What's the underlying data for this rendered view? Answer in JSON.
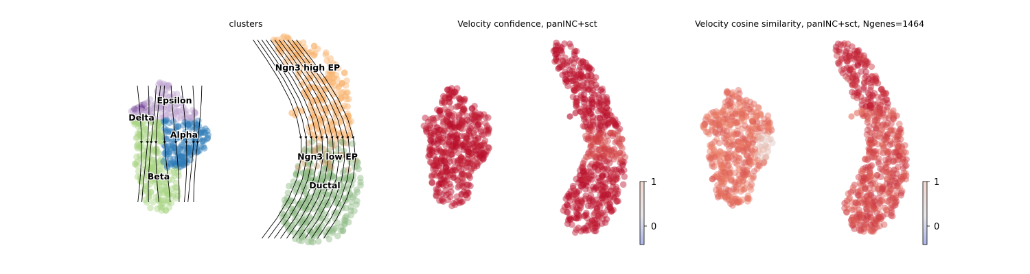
{
  "chart_data": [
    {
      "type": "scatter",
      "subtype": "umap-embedding-with-velocity-streamlines",
      "title": "clusters",
      "legend": "on-data",
      "clusters": [
        {
          "name": "Ngn3 high EP",
          "color": "#f8b26a"
        },
        {
          "name": "Ngn3 low EP",
          "color": "#c9a06c"
        },
        {
          "name": "Ductal",
          "color": "#8fba85"
        },
        {
          "name": "Beta",
          "color": "#a8d582"
        },
        {
          "name": "Alpha",
          "color": "#2f7db8"
        },
        {
          "name": "Delta",
          "color": "#7c4e9e"
        },
        {
          "name": "Epsilon",
          "color": "#c2a9d3"
        }
      ],
      "streamlines": true,
      "axes": "off"
    },
    {
      "type": "scatter",
      "subtype": "umap-embedding-colored",
      "title": "Velocity confidence, panINC+sct",
      "colormap": "coolwarm",
      "colorbar": {
        "ticks": [
          "1",
          "0"
        ]
      },
      "dominant_color": "#c0192f",
      "axes": "off"
    },
    {
      "type": "scatter",
      "subtype": "umap-embedding-colored",
      "title": "Velocity cosine similarity, panINC+sct, Ngenes=1464",
      "colormap": "coolwarm",
      "colorbar": {
        "ticks": [
          "1",
          "0"
        ]
      },
      "dominant_color": "#e0634d",
      "axes": "off"
    }
  ]
}
